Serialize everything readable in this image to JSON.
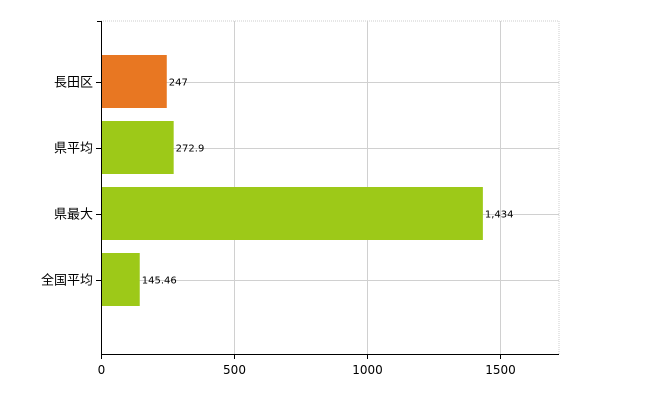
{
  "chart_data": {
    "type": "bar",
    "orientation": "horizontal",
    "categories": [
      "長田区",
      "県平均",
      "県最大",
      "全国平均"
    ],
    "values": [
      247,
      272.9,
      1434,
      145.46
    ],
    "value_labels": [
      "247",
      "272.9",
      "1,434",
      "145.46"
    ],
    "bar_colors": [
      "#e87722",
      "#9dc918",
      "#9dc918",
      "#9dc918"
    ],
    "x_ticks": [
      0,
      500,
      1000,
      1500
    ],
    "x_tick_labels": [
      "0",
      "500",
      "1000",
      "1500"
    ],
    "xlim": [
      0,
      1720
    ],
    "grid": true,
    "title": "",
    "xlabel": "",
    "ylabel": ""
  }
}
